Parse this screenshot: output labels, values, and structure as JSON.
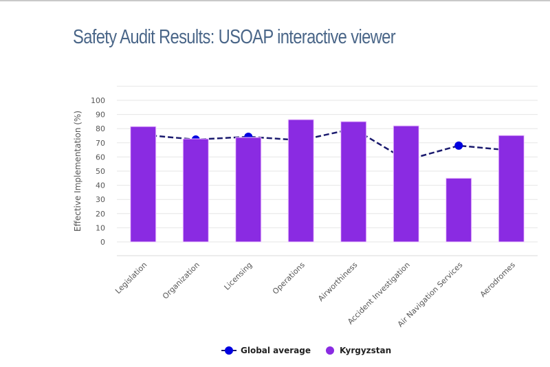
{
  "page": {
    "title": "Safety Audit Results: USOAP interactive viewer"
  },
  "colors": {
    "bar": "#8a2be2",
    "bar_border": "#f0c8ff",
    "line": "#1a1a6e",
    "marker": "#0000e0",
    "grid": "#e6e6e6",
    "title": "#4a6688"
  },
  "chart_data": {
    "type": "bar",
    "title": "Safety Audit Results: USOAP interactive viewer",
    "xlabel": "",
    "ylabel": "Effective Implementation (%)",
    "ylim": [
      0,
      100
    ],
    "yticks": [
      0,
      10,
      20,
      30,
      40,
      50,
      60,
      70,
      80,
      90,
      100
    ],
    "grid": true,
    "legend_position": "bottom-center",
    "categories": [
      "Legislation",
      "Organization",
      "Licensing",
      "Operations",
      "Airworthiness",
      "Accident Investigation",
      "Air Navigation Services",
      "Aerodromes"
    ],
    "series": [
      {
        "name": "Global average",
        "type": "line",
        "style": "dashed",
        "values": [
          75.7,
          72.3,
          74.3,
          71.8,
          80.0,
          57.8,
          68.0,
          64.6
        ],
        "visible_markers": [
          false,
          true,
          true,
          false,
          false,
          false,
          true,
          false
        ]
      },
      {
        "name": "Kyrgyzstan",
        "type": "bar",
        "values": [
          81.5,
          72.8,
          73.8,
          86.4,
          85.0,
          82.0,
          45.0,
          75.2
        ]
      }
    ]
  },
  "legend": {
    "items": [
      {
        "label": "Global average",
        "symbol": "line-dot-icon"
      },
      {
        "label": "Kyrgyzstan",
        "symbol": "dot-icon"
      }
    ]
  }
}
